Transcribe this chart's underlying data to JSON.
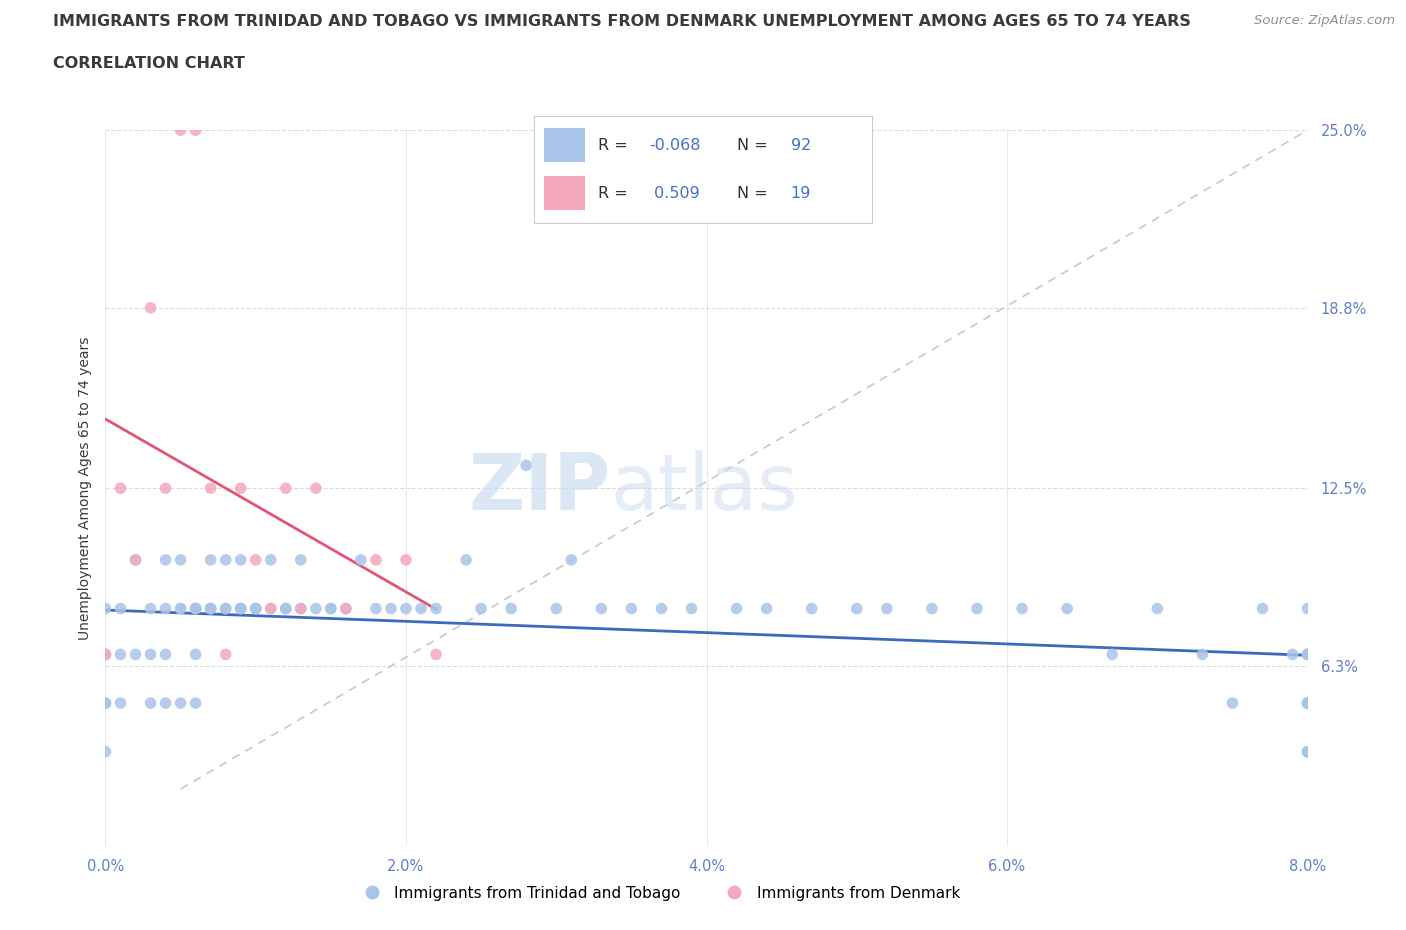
{
  "title_line1": "IMMIGRANTS FROM TRINIDAD AND TOBAGO VS IMMIGRANTS FROM DENMARK UNEMPLOYMENT AMONG AGES 65 TO 74 YEARS",
  "title_line2": "CORRELATION CHART",
  "source": "Source: ZipAtlas.com",
  "ylabel": "Unemployment Among Ages 65 to 74 years",
  "xlim": [
    0.0,
    0.08
  ],
  "ylim": [
    0.0,
    0.25
  ],
  "xticks": [
    0.0,
    0.02,
    0.04,
    0.06,
    0.08
  ],
  "xticklabels": [
    "0.0%",
    "2.0%",
    "4.0%",
    "6.0%",
    "8.0%"
  ],
  "ytick_positions": [
    0.0,
    0.063,
    0.125,
    0.188,
    0.25
  ],
  "ytick_labels": [
    "",
    "6.3%",
    "12.5%",
    "18.8%",
    "25.0%"
  ],
  "trinidad_color": "#a8c4e8",
  "denmark_color": "#f4a8bc",
  "trinidad_line_color": "#3a6bbf",
  "denmark_line_color": "#e05575",
  "ref_line_color": "#c8c8c8",
  "R_trinidad": -0.068,
  "N_trinidad": 92,
  "R_denmark": 0.509,
  "N_denmark": 19,
  "legend_label_1": "Immigrants from Trinidad and Tobago",
  "legend_label_2": "Immigrants from Denmark",
  "watermark_zip": "ZIP",
  "watermark_atlas": "atlas",
  "background_color": "#ffffff",
  "grid_color": "#dddddd",
  "title_color": "#3a3a3a",
  "axis_label_color": "#3a3a3a",
  "tick_label_color": "#6080c8",
  "source_color": "#909090",
  "value_color": "#4472c4",
  "label_color": "#333333",
  "title_fontsize": 11.5,
  "axis_label_fontsize": 10,
  "tick_fontsize": 10.5,
  "trinidad_x": [
    0.0,
    0.0,
    0.0,
    0.0,
    0.0,
    0.001,
    0.001,
    0.001,
    0.002,
    0.002,
    0.003,
    0.003,
    0.003,
    0.004,
    0.004,
    0.004,
    0.004,
    0.005,
    0.005,
    0.005,
    0.005,
    0.006,
    0.006,
    0.006,
    0.006,
    0.006,
    0.007,
    0.007,
    0.007,
    0.007,
    0.008,
    0.008,
    0.008,
    0.009,
    0.009,
    0.009,
    0.009,
    0.01,
    0.01,
    0.01,
    0.011,
    0.011,
    0.012,
    0.012,
    0.013,
    0.013,
    0.014,
    0.015,
    0.015,
    0.016,
    0.017,
    0.018,
    0.019,
    0.02,
    0.021,
    0.022,
    0.024,
    0.025,
    0.027,
    0.028,
    0.03,
    0.031,
    0.033,
    0.035,
    0.037,
    0.039,
    0.042,
    0.044,
    0.047,
    0.05,
    0.052,
    0.055,
    0.058,
    0.061,
    0.064,
    0.067,
    0.07,
    0.073,
    0.075,
    0.077,
    0.079,
    0.08,
    0.08,
    0.08,
    0.08,
    0.08,
    0.08,
    0.08,
    0.08,
    0.08,
    0.08,
    0.08
  ],
  "trinidad_y": [
    0.067,
    0.05,
    0.083,
    0.05,
    0.033,
    0.067,
    0.05,
    0.083,
    0.067,
    0.1,
    0.083,
    0.05,
    0.067,
    0.1,
    0.05,
    0.083,
    0.067,
    0.083,
    0.05,
    0.1,
    0.083,
    0.083,
    0.067,
    0.05,
    0.083,
    0.083,
    0.083,
    0.1,
    0.083,
    0.083,
    0.083,
    0.083,
    0.1,
    0.083,
    0.083,
    0.1,
    0.083,
    0.083,
    0.083,
    0.083,
    0.083,
    0.1,
    0.083,
    0.083,
    0.083,
    0.1,
    0.083,
    0.083,
    0.083,
    0.083,
    0.1,
    0.083,
    0.083,
    0.083,
    0.083,
    0.083,
    0.1,
    0.083,
    0.083,
    0.133,
    0.083,
    0.1,
    0.083,
    0.083,
    0.083,
    0.083,
    0.083,
    0.083,
    0.083,
    0.083,
    0.083,
    0.083,
    0.083,
    0.083,
    0.083,
    0.067,
    0.083,
    0.067,
    0.05,
    0.083,
    0.067,
    0.05,
    0.033,
    0.083,
    0.05,
    0.067,
    0.033,
    0.05,
    0.067,
    0.033,
    0.05,
    0.067
  ],
  "denmark_x": [
    0.0,
    0.001,
    0.002,
    0.003,
    0.004,
    0.005,
    0.006,
    0.007,
    0.008,
    0.009,
    0.01,
    0.011,
    0.012,
    0.013,
    0.014,
    0.016,
    0.018,
    0.02,
    0.022
  ],
  "denmark_y": [
    0.067,
    0.125,
    0.1,
    0.188,
    0.125,
    0.25,
    0.25,
    0.125,
    0.067,
    0.125,
    0.1,
    0.083,
    0.125,
    0.083,
    0.125,
    0.083,
    0.1,
    0.1,
    0.067
  ]
}
